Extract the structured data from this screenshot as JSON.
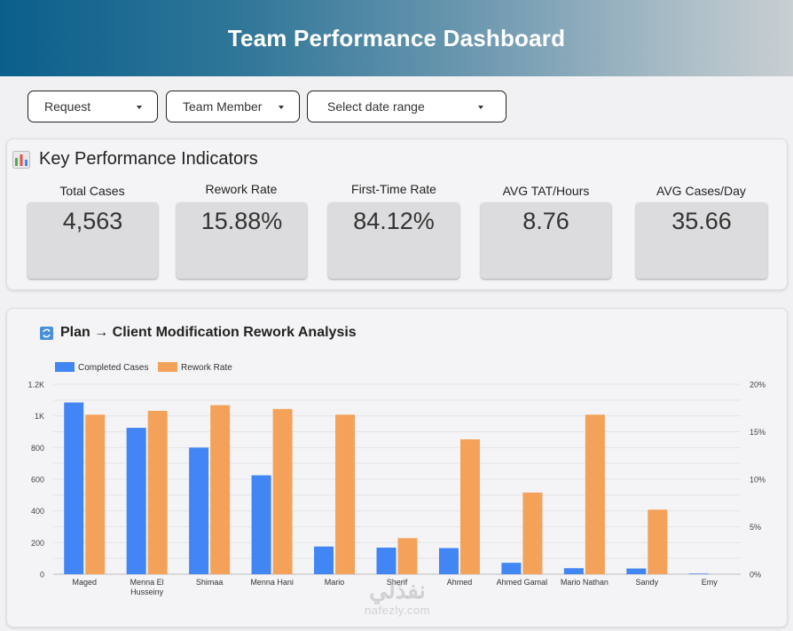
{
  "header": {
    "title": "Team Performance Dashboard"
  },
  "filters": [
    {
      "label": "Request"
    },
    {
      "label": "Team Member"
    },
    {
      "label": "Select date range"
    }
  ],
  "kpi": {
    "title": "Key Performance Indicators",
    "icon": "bar-chart-icon",
    "items": [
      {
        "label": "Total Cases",
        "value": "4,563"
      },
      {
        "label": "Rework Rate",
        "value": "15.88%"
      },
      {
        "label": "First-Time Rate",
        "value": "84.12%"
      },
      {
        "label": "AVG TAT/Hours",
        "value": "8.76"
      },
      {
        "label": "AVG Cases/Day",
        "value": "35.66"
      }
    ]
  },
  "chart_section": {
    "title": "Plan → Client Modification Rework Analysis",
    "icon": "refresh-icon"
  },
  "chart_data": {
    "type": "bar",
    "categories": [
      "Maged",
      "Menna El Husseiny",
      "Shimaa",
      "Menna Hani",
      "Mario",
      "Sherif",
      "Ahmed",
      "Ahmed Gamal",
      "Mario Nathan",
      "Sandy",
      "Emy"
    ],
    "series": [
      {
        "name": "Completed Cases",
        "axis": "left",
        "color": "#4285f4",
        "values": [
          1085,
          925,
          800,
          625,
          175,
          168,
          165,
          72,
          38,
          36,
          4
        ]
      },
      {
        "name": "Rework Rate",
        "axis": "right",
        "color": "#f4a259",
        "values": [
          16.8,
          17.2,
          17.8,
          17.4,
          16.8,
          3.8,
          14.2,
          8.6,
          16.8,
          6.8,
          0
        ]
      }
    ],
    "y_left": {
      "min": 0,
      "max": 1200,
      "ticks": [
        "0",
        "200",
        "400",
        "600",
        "800",
        "1K",
        "1.2K"
      ]
    },
    "y_right": {
      "min": 0,
      "max": 20,
      "ticks": [
        "0%",
        "5%",
        "10%",
        "15%",
        "20%"
      ]
    },
    "legend": "top-left",
    "grid": true
  },
  "watermark": {
    "arabic": "نفذلي",
    "latin": "nafezly.com"
  }
}
